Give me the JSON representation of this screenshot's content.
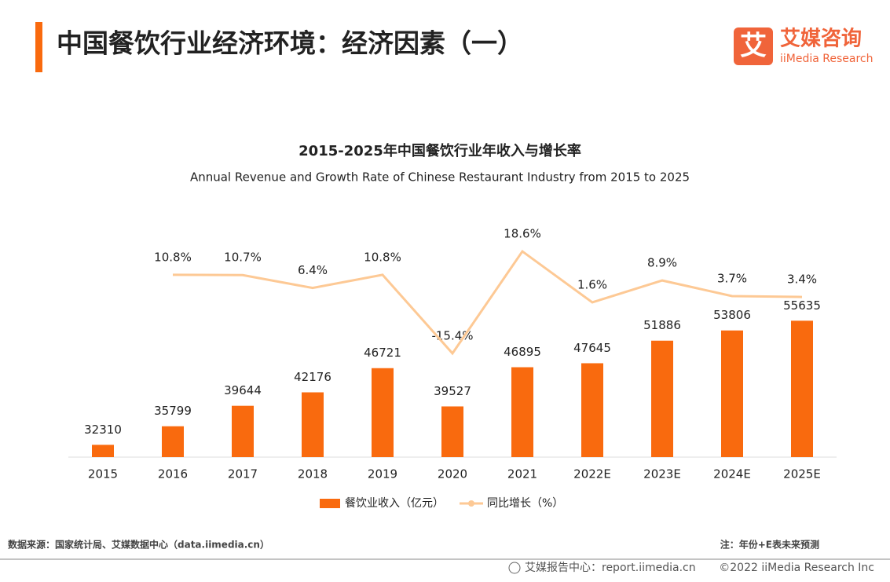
{
  "header": {
    "title": "中国餐饮行业经济环境：经济因素（一）",
    "logo_mark": "艾",
    "logo_name": "艾媒咨询",
    "logo_sub": "iiMedia Research"
  },
  "chart_data": {
    "type": "bar",
    "title": "2015-2025年中国餐饮行业年收入与增长率",
    "subtitle": "Annual Revenue and Growth Rate of Chinese Restaurant Industry from 2015 to 2025",
    "categories": [
      "2015",
      "2016",
      "2017",
      "2018",
      "2019",
      "2020",
      "2021",
      "2022E",
      "2023E",
      "2024E",
      "2025E"
    ],
    "series": [
      {
        "name": "餐饮业收入（亿元）",
        "type": "bar",
        "color": "#f96a0e",
        "values": [
          32310,
          35799,
          39644,
          42176,
          46721,
          39527,
          46895,
          47645,
          51886,
          53806,
          55635
        ]
      },
      {
        "name": "同比增长（%）",
        "type": "line",
        "axis": "y2",
        "color": "#fdc995",
        "values": [
          null,
          10.8,
          10.7,
          6.4,
          10.8,
          -15.4,
          18.6,
          1.6,
          8.9,
          3.7,
          3.4
        ],
        "value_labels": [
          null,
          "10.8%",
          "10.7%",
          "6.4%",
          "10.8%",
          "-15.4%",
          "18.6%",
          "1.6%",
          "8.9%",
          "3.7%",
          "3.4%"
        ]
      }
    ],
    "ylim": [
      30000,
      92000
    ],
    "y2lim": [
      -50,
      60
    ],
    "legend": "bottom"
  },
  "footer": {
    "source": "数据来源：国家统计局、艾媒数据中心（data.iimedia.cn）",
    "note": "注：年份+E表未来预测",
    "center": "艾媒报告中心：report.iimedia.cn",
    "copyright": "©2022  iiMedia Research  Inc"
  }
}
